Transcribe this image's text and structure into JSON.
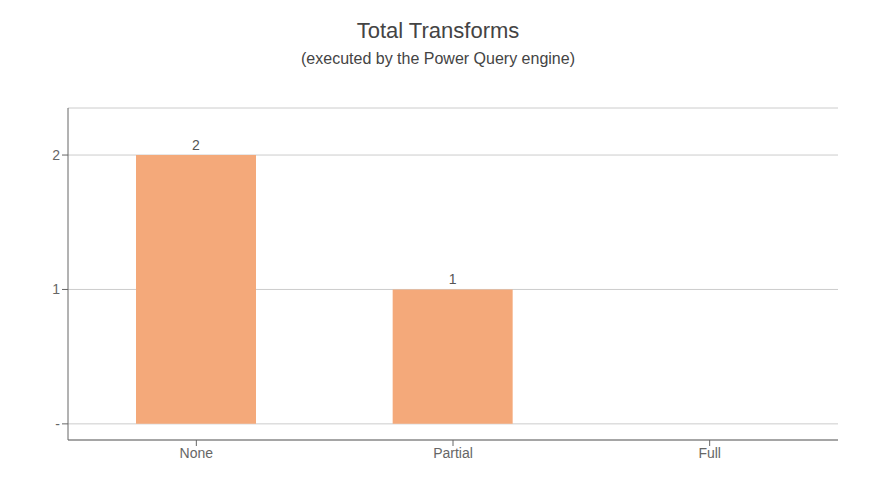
{
  "chart_data": {
    "type": "bar",
    "title": "Total Transforms",
    "subtitle": "(executed by the Power Query engine)",
    "categories": [
      "None",
      "Partial",
      "Full"
    ],
    "values": [
      2,
      1,
      0
    ],
    "color": "#F4A97A",
    "ylim": [
      -0.12,
      2.35
    ],
    "yticks": [
      {
        "value": 0,
        "label": "-"
      },
      1,
      2
    ],
    "grid": true,
    "data_labels": true
  }
}
